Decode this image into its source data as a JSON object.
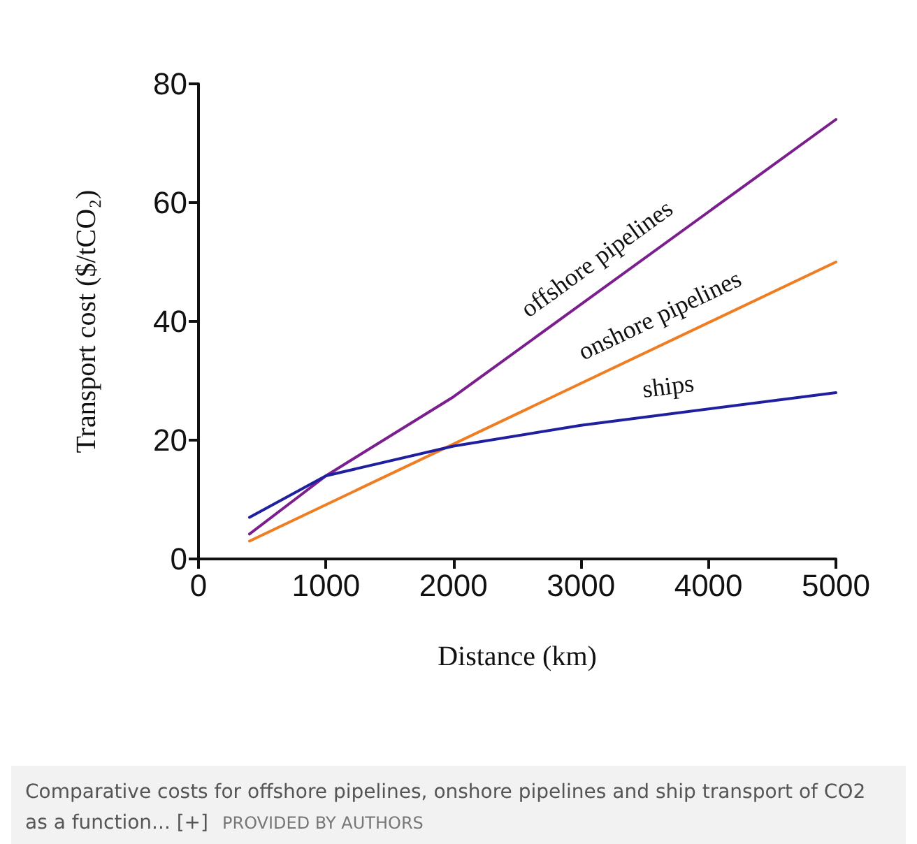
{
  "chart_data": {
    "type": "line",
    "xlabel": "Distance (km)",
    "ylabel": "Transport cost ($/tCO₂)",
    "xlim": [
      0,
      5000
    ],
    "xticks": [
      0,
      1000,
      2000,
      3000,
      4000,
      5000
    ],
    "ylim": [
      0,
      80
    ],
    "yticks": [
      0,
      20,
      40,
      60,
      80
    ],
    "grid": false,
    "legend": false,
    "marker": "none",
    "line_style": "solid",
    "series": [
      {
        "name": "offshore pipelines",
        "color": "#7b1f8e",
        "x": [
          400,
          1000,
          2000,
          5000
        ],
        "values": [
          4.2,
          14,
          27.3,
          74
        ]
      },
      {
        "name": "onshore pipelines",
        "color": "#ef7d22",
        "x": [
          400,
          5000
        ],
        "values": [
          3,
          50
        ]
      },
      {
        "name": "ships",
        "color": "#1f1fa0",
        "x": [
          400,
          1000,
          2000,
          3000,
          5000
        ],
        "values": [
          7,
          14,
          19,
          22.5,
          28
        ]
      }
    ],
    "annotations": [
      "Comparative costs for offshore pipelines, onshore pipelines and ship transport of CO2 as a function... [+]",
      "PROVIDED BY AUTHORS"
    ]
  }
}
